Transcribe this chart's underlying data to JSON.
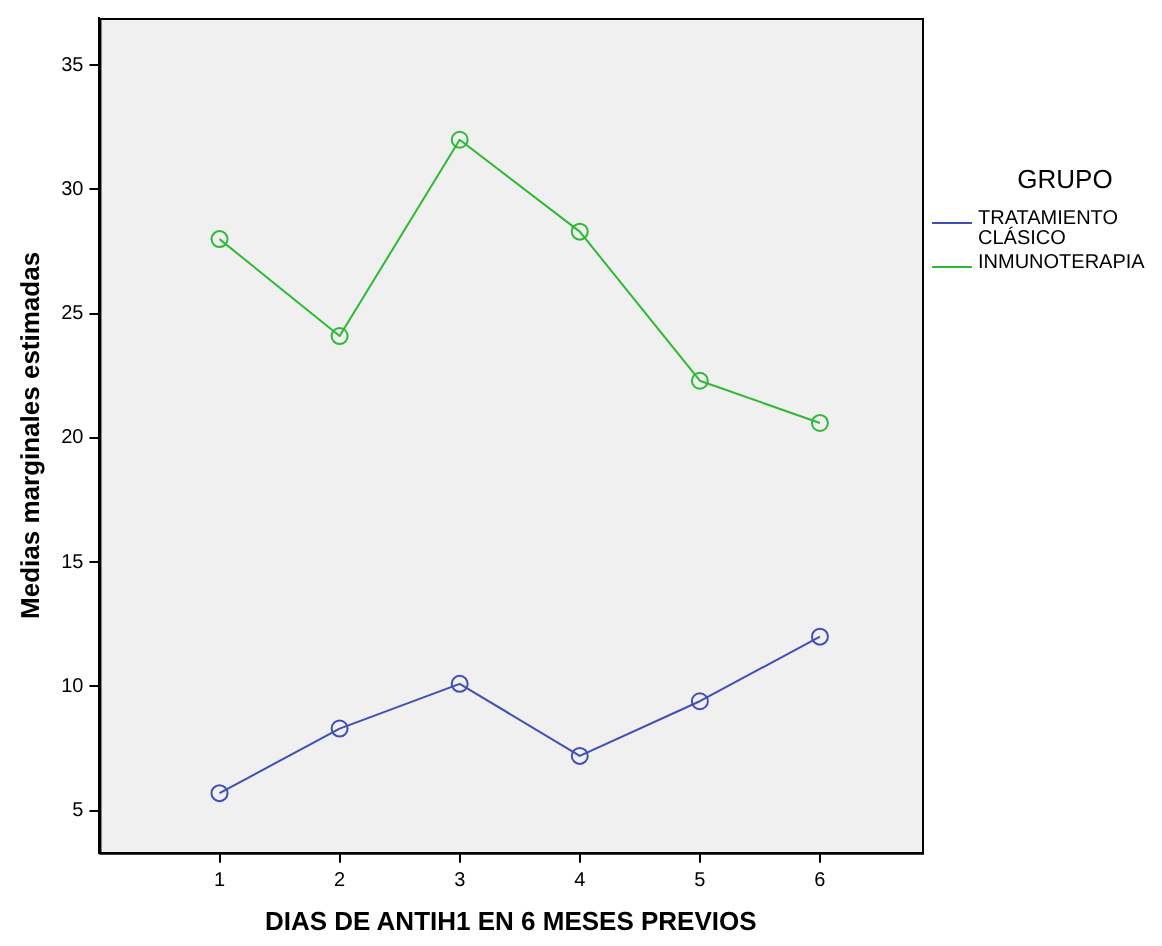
{
  "chart_data": {
    "type": "line",
    "xlabel": "DIAS DE ANTIH1 EN 6 MESES PREVIOS",
    "ylabel": "Medias marginales estimadas",
    "legend_title": "GRUPO",
    "legend": "right",
    "marker": "circle",
    "grid": false,
    "x": [
      1,
      2,
      3,
      4,
      5,
      6
    ],
    "xlim": [
      0,
      6.85
    ],
    "xticks": [
      1,
      2,
      3,
      4,
      5,
      6
    ],
    "ylim": [
      3.3,
      36.9
    ],
    "yticks": [
      5,
      10,
      15,
      20,
      25,
      30,
      35
    ],
    "series": [
      {
        "name": "TRATAMIENTO CLÁSICO",
        "color": "#3f4fb5",
        "values": [
          5.7,
          8.3,
          10.1,
          7.2,
          9.4,
          12.0
        ]
      },
      {
        "name": "INMUNOTERAPIA",
        "color": "#2db934",
        "values": [
          28.0,
          24.1,
          32.0,
          28.3,
          22.3,
          20.6
        ]
      }
    ]
  }
}
